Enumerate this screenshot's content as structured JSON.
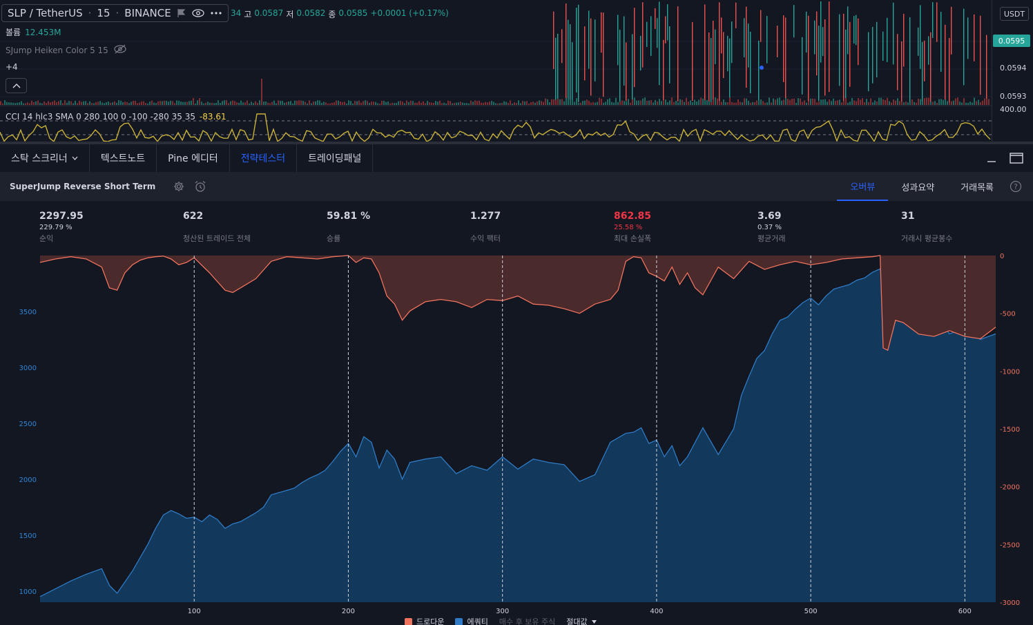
{
  "symbol_bar": {
    "symbol": "SLP / TetherUS",
    "interval": "15",
    "exchange": "BINANCE"
  },
  "ohlc": {
    "o_partial": "34",
    "h_label": "고",
    "h": "0.0587",
    "l_label": "저",
    "l": "0.0582",
    "c_label": "종",
    "c": "0.0585",
    "change": "+0.0001 (+0.17%)"
  },
  "volume": {
    "label": "볼륨",
    "value": "12.453M"
  },
  "indicator": {
    "name": "SJump Heiken Color 5 15"
  },
  "more_indicators": "+4",
  "cci": {
    "label": "CCI 14 hlc3 SMA 0 280 100 0 -100 -280 35 35",
    "value": "-83.61"
  },
  "price_axis": {
    "currency": "USDT",
    "current": "0.0595",
    "levels": [
      "0.0594",
      "0.0593"
    ],
    "cci_level": "400.00"
  },
  "panel_tabs": [
    {
      "label": "스탁 스크리너",
      "has_dropdown": true
    },
    {
      "label": "텍스트노트"
    },
    {
      "label": "Pine 에디터"
    },
    {
      "label": "전략테스터",
      "active": true
    },
    {
      "label": "트레이딩패널"
    }
  ],
  "strategy": {
    "title": "SuperJump Reverse Short Term",
    "tabs": [
      {
        "label": "오버뷰",
        "active": true
      },
      {
        "label": "성과요약"
      },
      {
        "label": "거래목록"
      }
    ]
  },
  "metrics": [
    {
      "value": "2297.95",
      "sub": "229.79 %",
      "label": "순익"
    },
    {
      "value": "622",
      "label": "청산된 트레이드 전체"
    },
    {
      "value": "59.81 %",
      "label": "승률"
    },
    {
      "value": "1.277",
      "label": "수익 팩터"
    },
    {
      "value": "862.85",
      "sub": "25.58 %",
      "label": "최대 손실폭",
      "negative": true
    },
    {
      "value": "3.69",
      "sub": "0.37 %",
      "label": "평균거래"
    },
    {
      "value": "31",
      "label": "거래시 평균봉수"
    }
  ],
  "legend": {
    "drawdown": "드로다운",
    "equity": "에쿼티",
    "buy_hold": "매수 후 보유 주식",
    "mode": "절대값"
  },
  "colors": {
    "drawdown": "#f0735f",
    "equity": "#2f7bc5",
    "accent": "#2962ff",
    "up": "#26a69a",
    "down": "#ef5350",
    "cci": "#c9b23a"
  },
  "chart_data": {
    "type": "area",
    "x_ticks": [
      100,
      200,
      300,
      400,
      500,
      600
    ],
    "trade_markers": [
      100,
      200,
      300,
      400,
      500,
      600
    ],
    "equity_axis": {
      "ticks": [
        1000,
        1500,
        2000,
        2500,
        3000,
        3500
      ],
      "range": [
        900,
        4000
      ]
    },
    "drawdown_axis": {
      "ticks": [
        0,
        -500,
        -1000,
        -1500,
        -2000,
        -2500,
        -3000
      ],
      "range": [
        0,
        -3000
      ]
    },
    "x_range": [
      0,
      620
    ],
    "equity": {
      "name": "에쿼티",
      "x": [
        0,
        10,
        20,
        30,
        40,
        45,
        50,
        55,
        60,
        65,
        70,
        75,
        80,
        85,
        90,
        95,
        100,
        105,
        110,
        115,
        120,
        125,
        130,
        135,
        140,
        145,
        150,
        155,
        160,
        165,
        170,
        175,
        180,
        185,
        190,
        195,
        200,
        205,
        210,
        215,
        220,
        225,
        230,
        235,
        240,
        250,
        260,
        270,
        280,
        290,
        300,
        310,
        320,
        330,
        340,
        350,
        360,
        370,
        380,
        385,
        390,
        395,
        400,
        405,
        410,
        415,
        420,
        430,
        440,
        450,
        455,
        460,
        465,
        470,
        475,
        480,
        485,
        490,
        495,
        500,
        505,
        510,
        515,
        520,
        525,
        530,
        535,
        540,
        545,
        550,
        555,
        560,
        570,
        580,
        590,
        600,
        610,
        620
      ],
      "y": [
        950,
        1020,
        1090,
        1150,
        1200,
        1050,
        980,
        1080,
        1180,
        1300,
        1420,
        1560,
        1680,
        1720,
        1690,
        1650,
        1660,
        1620,
        1680,
        1640,
        1560,
        1600,
        1620,
        1660,
        1700,
        1750,
        1860,
        1880,
        1900,
        1920,
        1970,
        2010,
        2040,
        2080,
        2160,
        2250,
        2320,
        2200,
        2380,
        2330,
        2100,
        2260,
        2180,
        2000,
        2150,
        2180,
        2200,
        2050,
        2120,
        2080,
        2200,
        2090,
        2180,
        2150,
        2130,
        1980,
        2040,
        2330,
        2410,
        2420,
        2460,
        2320,
        2350,
        2200,
        2300,
        2120,
        2200,
        2460,
        2220,
        2450,
        2750,
        2920,
        3080,
        3150,
        3300,
        3420,
        3450,
        3520,
        3580,
        3620,
        3560,
        3640,
        3700,
        3720,
        3740,
        3780,
        3800,
        3850,
        3880,
        3920,
        3880,
        3500,
        3400,
        3500,
        3300,
        3350,
        3250,
        3300
      ]
    },
    "drawdown": {
      "name": "드로다운",
      "x": [
        0,
        10,
        20,
        30,
        40,
        45,
        50,
        55,
        60,
        65,
        70,
        75,
        80,
        85,
        90,
        95,
        100,
        110,
        120,
        125,
        130,
        140,
        150,
        160,
        170,
        180,
        190,
        200,
        205,
        210,
        215,
        220,
        225,
        230,
        235,
        240,
        250,
        260,
        270,
        280,
        290,
        300,
        310,
        320,
        330,
        340,
        350,
        360,
        370,
        375,
        380,
        385,
        390,
        395,
        400,
        405,
        410,
        415,
        420,
        425,
        430,
        440,
        450,
        460,
        470,
        480,
        490,
        500,
        510,
        520,
        530,
        540,
        545,
        547,
        550,
        555,
        560,
        570,
        580,
        590,
        600,
        610,
        620
      ],
      "y": [
        -60,
        -30,
        -10,
        -30,
        -100,
        -280,
        -300,
        -150,
        -80,
        -40,
        -20,
        -10,
        -5,
        -30,
        -80,
        -60,
        -20,
        -150,
        -300,
        -320,
        -280,
        -200,
        -50,
        -10,
        -20,
        -30,
        -10,
        0,
        -60,
        -20,
        -30,
        -150,
        -350,
        -420,
        -560,
        -480,
        -400,
        -380,
        -400,
        -450,
        -380,
        -390,
        -350,
        -420,
        -430,
        -460,
        -500,
        -420,
        -380,
        -300,
        -50,
        -10,
        -20,
        -150,
        -180,
        -220,
        -100,
        -250,
        -150,
        -280,
        -340,
        -100,
        -200,
        -50,
        -120,
        -80,
        -50,
        -80,
        -60,
        -30,
        -20,
        -10,
        0,
        -800,
        -820,
        -560,
        -580,
        -680,
        -700,
        -650,
        -700,
        -720,
        -620
      ]
    }
  }
}
